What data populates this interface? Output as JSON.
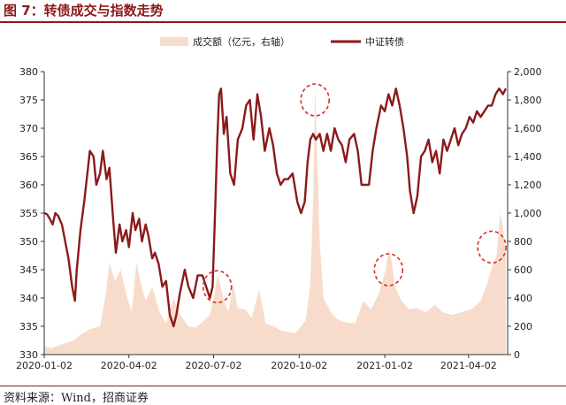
{
  "figure": {
    "title": "图 7：转债成交与指数走势",
    "source": "资料来源：Wind，招商证券"
  },
  "chart_data": {
    "type": "line",
    "legend_placement": "top-center",
    "grid": false,
    "x_ticks": [
      "2020-01-02",
      "2020-04-02",
      "2020-07-02",
      "2020-10-02",
      "2021-01-02",
      "2021-04-02"
    ],
    "y_left": {
      "lim": [
        330,
        380
      ],
      "ticks": [
        330,
        335,
        340,
        345,
        350,
        355,
        360,
        365,
        370,
        375,
        380
      ]
    },
    "y_right": {
      "lim": [
        0,
        2000
      ],
      "ticks": [
        "0",
        "200",
        "400",
        "600",
        "800",
        "1,000",
        "1,200",
        "1,400",
        "1,600",
        "1,800",
        "2,000"
      ]
    },
    "colors": {
      "volume": "#f8dccb",
      "index": "#8b1a1a",
      "annotation": "#d92b2b"
    },
    "series": [
      {
        "name": "成交额（亿元，右轴）",
        "type": "area",
        "axis": "right",
        "points": [
          [
            "2020-01-02",
            60
          ],
          [
            "2020-01-10",
            45
          ],
          [
            "2020-01-20",
            70
          ],
          [
            "2020-02-03",
            100
          ],
          [
            "2020-02-10",
            140
          ],
          [
            "2020-02-20",
            180
          ],
          [
            "2020-03-02",
            200
          ],
          [
            "2020-03-08",
            420
          ],
          [
            "2020-03-12",
            650
          ],
          [
            "2020-03-18",
            520
          ],
          [
            "2020-03-24",
            600
          ],
          [
            "2020-03-30",
            430
          ],
          [
            "2020-04-05",
            300
          ],
          [
            "2020-04-10",
            650
          ],
          [
            "2020-04-15",
            500
          ],
          [
            "2020-04-20",
            380
          ],
          [
            "2020-04-27",
            480
          ],
          [
            "2020-05-05",
            300
          ],
          [
            "2020-05-12",
            220
          ],
          [
            "2020-05-20",
            400
          ],
          [
            "2020-05-27",
            280
          ],
          [
            "2020-06-05",
            200
          ],
          [
            "2020-06-12",
            190
          ],
          [
            "2020-06-20",
            230
          ],
          [
            "2020-06-28",
            280
          ],
          [
            "2020-07-03",
            420
          ],
          [
            "2020-07-06",
            560
          ],
          [
            "2020-07-09",
            500
          ],
          [
            "2020-07-13",
            380
          ],
          [
            "2020-07-18",
            300
          ],
          [
            "2020-07-23",
            500
          ],
          [
            "2020-07-28",
            330
          ],
          [
            "2020-08-05",
            320
          ],
          [
            "2020-08-12",
            260
          ],
          [
            "2020-08-20",
            460
          ],
          [
            "2020-08-27",
            220
          ],
          [
            "2020-09-05",
            200
          ],
          [
            "2020-09-12",
            170
          ],
          [
            "2020-09-20",
            160
          ],
          [
            "2020-09-28",
            150
          ],
          [
            "2020-10-09",
            240
          ],
          [
            "2020-10-14",
            500
          ],
          [
            "2020-10-17",
            1100
          ],
          [
            "2020-10-19",
            1900
          ],
          [
            "2020-10-21",
            1500
          ],
          [
            "2020-10-24",
            800
          ],
          [
            "2020-10-28",
            400
          ],
          [
            "2020-11-05",
            300
          ],
          [
            "2020-11-12",
            250
          ],
          [
            "2020-11-20",
            230
          ],
          [
            "2020-12-01",
            220
          ],
          [
            "2020-12-10",
            380
          ],
          [
            "2020-12-18",
            320
          ],
          [
            "2020-12-26",
            420
          ],
          [
            "2021-01-03",
            600
          ],
          [
            "2021-01-06",
            740
          ],
          [
            "2021-01-09",
            680
          ],
          [
            "2021-01-13",
            480
          ],
          [
            "2021-01-20",
            380
          ],
          [
            "2021-01-28",
            320
          ],
          [
            "2021-02-05",
            330
          ],
          [
            "2021-02-15",
            300
          ],
          [
            "2021-02-25",
            350
          ],
          [
            "2021-03-05",
            300
          ],
          [
            "2021-03-15",
            280
          ],
          [
            "2021-03-25",
            300
          ],
          [
            "2021-04-05",
            320
          ],
          [
            "2021-04-15",
            380
          ],
          [
            "2021-04-22",
            500
          ],
          [
            "2021-04-27",
            620
          ],
          [
            "2021-05-02",
            700
          ],
          [
            "2021-05-06",
            1000
          ],
          [
            "2021-05-09",
            900
          ],
          [
            "2021-05-12",
            720
          ]
        ]
      },
      {
        "name": "中证转债",
        "type": "line",
        "axis": "left",
        "points": [
          [
            "2020-01-02",
            355
          ],
          [
            "2020-01-05",
            354.8
          ],
          [
            "2020-01-08",
            354
          ],
          [
            "2020-01-11",
            353
          ],
          [
            "2020-01-14",
            355
          ],
          [
            "2020-01-17",
            354.5
          ],
          [
            "2020-01-21",
            353
          ],
          [
            "2020-01-28",
            347
          ],
          [
            "2020-02-01",
            342
          ],
          [
            "2020-02-04",
            339.5
          ],
          [
            "2020-02-06",
            345
          ],
          [
            "2020-02-10",
            352
          ],
          [
            "2020-02-14",
            357
          ],
          [
            "2020-02-18",
            363
          ],
          [
            "2020-02-20",
            366
          ],
          [
            "2020-02-24",
            365
          ],
          [
            "2020-02-27",
            360
          ],
          [
            "2020-03-02",
            362
          ],
          [
            "2020-03-05",
            366
          ],
          [
            "2020-03-09",
            361
          ],
          [
            "2020-03-12",
            363
          ],
          [
            "2020-03-16",
            354
          ],
          [
            "2020-03-19",
            348
          ],
          [
            "2020-03-23",
            353
          ],
          [
            "2020-03-26",
            350
          ],
          [
            "2020-03-30",
            352
          ],
          [
            "2020-04-02",
            349
          ],
          [
            "2020-04-06",
            355
          ],
          [
            "2020-04-09",
            352
          ],
          [
            "2020-04-13",
            354
          ],
          [
            "2020-04-16",
            350
          ],
          [
            "2020-04-20",
            353
          ],
          [
            "2020-04-23",
            351
          ],
          [
            "2020-04-27",
            347
          ],
          [
            "2020-04-30",
            348
          ],
          [
            "2020-05-04",
            346
          ],
          [
            "2020-05-08",
            342
          ],
          [
            "2020-05-12",
            343
          ],
          [
            "2020-05-16",
            337
          ],
          [
            "2020-05-20",
            335
          ],
          [
            "2020-05-23",
            337
          ],
          [
            "2020-05-27",
            341
          ],
          [
            "2020-06-01",
            345
          ],
          [
            "2020-06-05",
            342
          ],
          [
            "2020-06-10",
            340
          ],
          [
            "2020-06-15",
            344
          ],
          [
            "2020-06-20",
            344
          ],
          [
            "2020-06-24",
            342
          ],
          [
            "2020-06-28",
            340
          ],
          [
            "2020-07-01",
            342
          ],
          [
            "2020-07-04",
            357
          ],
          [
            "2020-07-06",
            368
          ],
          [
            "2020-07-08",
            376
          ],
          [
            "2020-07-10",
            377
          ],
          [
            "2020-07-13",
            369
          ],
          [
            "2020-07-16",
            372
          ],
          [
            "2020-07-20",
            362
          ],
          [
            "2020-07-24",
            360
          ],
          [
            "2020-07-28",
            368
          ],
          [
            "2020-08-02",
            370
          ],
          [
            "2020-08-06",
            374
          ],
          [
            "2020-08-10",
            375
          ],
          [
            "2020-08-14",
            368
          ],
          [
            "2020-08-18",
            376
          ],
          [
            "2020-08-22",
            372
          ],
          [
            "2020-08-26",
            366
          ],
          [
            "2020-08-31",
            370
          ],
          [
            "2020-09-04",
            367
          ],
          [
            "2020-09-08",
            362
          ],
          [
            "2020-09-12",
            360
          ],
          [
            "2020-09-16",
            361
          ],
          [
            "2020-09-20",
            361
          ],
          [
            "2020-09-25",
            362
          ],
          [
            "2020-09-30",
            357
          ],
          [
            "2020-10-04",
            355
          ],
          [
            "2020-10-08",
            357
          ],
          [
            "2020-10-11",
            364
          ],
          [
            "2020-10-14",
            368
          ],
          [
            "2020-10-17",
            369
          ],
          [
            "2020-10-20",
            368
          ],
          [
            "2020-10-24",
            369
          ],
          [
            "2020-10-28",
            366
          ],
          [
            "2020-11-01",
            369
          ],
          [
            "2020-11-05",
            366
          ],
          [
            "2020-11-09",
            370
          ],
          [
            "2020-11-13",
            368
          ],
          [
            "2020-11-17",
            367
          ],
          [
            "2020-11-21",
            364
          ],
          [
            "2020-11-25",
            368
          ],
          [
            "2020-11-30",
            369
          ],
          [
            "2020-12-04",
            366
          ],
          [
            "2020-12-08",
            360
          ],
          [
            "2020-12-12",
            360
          ],
          [
            "2020-12-16",
            360
          ],
          [
            "2020-12-20",
            366
          ],
          [
            "2020-12-24",
            370
          ],
          [
            "2020-12-29",
            374
          ],
          [
            "2021-01-02",
            373
          ],
          [
            "2021-01-06",
            376
          ],
          [
            "2021-01-10",
            374
          ],
          [
            "2021-01-14",
            377
          ],
          [
            "2021-01-18",
            374
          ],
          [
            "2021-01-22",
            370
          ],
          [
            "2021-01-26",
            365
          ],
          [
            "2021-01-29",
            359
          ],
          [
            "2021-02-02",
            355
          ],
          [
            "2021-02-06",
            358
          ],
          [
            "2021-02-10",
            365
          ],
          [
            "2021-02-14",
            366
          ],
          [
            "2021-02-18",
            368
          ],
          [
            "2021-02-22",
            364
          ],
          [
            "2021-02-26",
            366
          ],
          [
            "2021-03-02",
            362
          ],
          [
            "2021-03-06",
            368
          ],
          [
            "2021-03-10",
            366
          ],
          [
            "2021-03-14",
            368
          ],
          [
            "2021-03-18",
            370
          ],
          [
            "2021-03-22",
            367
          ],
          [
            "2021-03-26",
            369
          ],
          [
            "2021-03-30",
            370
          ],
          [
            "2021-04-03",
            372
          ],
          [
            "2021-04-07",
            371
          ],
          [
            "2021-04-11",
            373
          ],
          [
            "2021-04-15",
            372
          ],
          [
            "2021-04-19",
            373
          ],
          [
            "2021-04-23",
            374
          ],
          [
            "2021-04-27",
            374
          ],
          [
            "2021-05-01",
            376
          ],
          [
            "2021-05-05",
            377
          ],
          [
            "2021-05-09",
            376
          ],
          [
            "2021-05-12",
            377
          ]
        ]
      }
    ],
    "annotations": [
      {
        "shape": "dashed-ellipse",
        "center": [
          "2020-07-06",
          342
        ]
      },
      {
        "shape": "dashed-ellipse",
        "center": [
          "2020-10-19",
          375
        ]
      },
      {
        "shape": "dashed-ellipse",
        "center": [
          "2021-01-06",
          345
        ]
      },
      {
        "shape": "dashed-ellipse",
        "center": [
          "2021-04-27",
          349
        ]
      }
    ]
  }
}
